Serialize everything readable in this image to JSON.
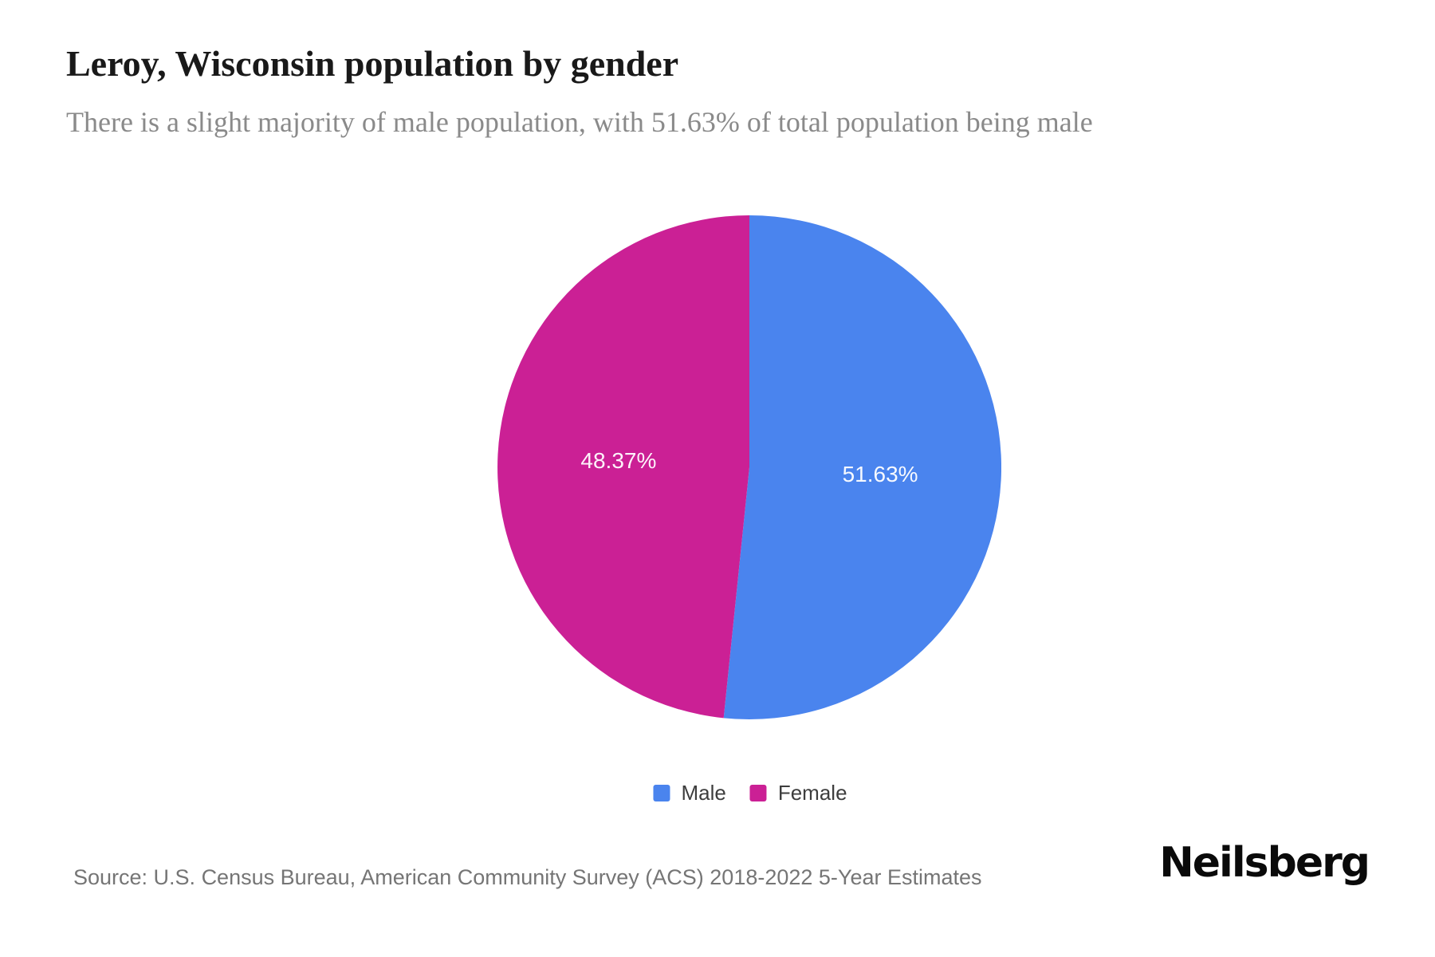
{
  "header": {
    "title": "Leroy, Wisconsin population by gender",
    "subtitle": "There is a slight majority of male population, with 51.63% of total population being male"
  },
  "chart_data": {
    "type": "pie",
    "title": "Leroy, Wisconsin population by gender",
    "labels": [
      "Male",
      "Female"
    ],
    "values": [
      51.63,
      48.37
    ],
    "value_labels": [
      "51.63%",
      "48.37%"
    ],
    "colors": [
      "#4A84EE",
      "#CB2095"
    ],
    "slice_label_color": "#FFFFFF",
    "start_angle_deg": -90,
    "direction": "clockwise",
    "legend_position": "bottom"
  },
  "footer": {
    "source": "Source: U.S. Census Bureau, American Community Survey (ACS) 2018-2022 5-Year Estimates",
    "brand": "Neilsberg"
  }
}
